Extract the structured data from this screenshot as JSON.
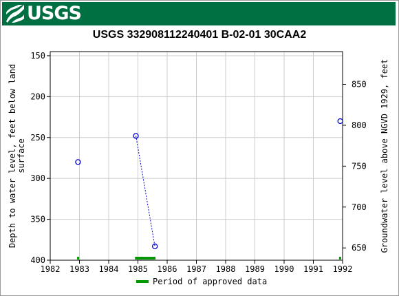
{
  "header": {
    "logo_text": "USGS",
    "logo_icon": "usgs-wave-icon",
    "banner_color": "#006f41"
  },
  "chart_data": {
    "type": "scatter",
    "title": "USGS 332908112240401 B-02-01 30CAA2",
    "xlabel": "",
    "ylabel_left": "Depth to water level, feet below land surface",
    "ylabel_right": "Groundwater level above NGVD 1929, feet",
    "xlim": [
      1982,
      1992
    ],
    "ylim_left": [
      400,
      145
    ],
    "ylim_right": [
      635,
      890
    ],
    "y_left_inverted": true,
    "x_ticks": [
      "1982",
      "1983",
      "1984",
      "1985",
      "1986",
      "1987",
      "1988",
      "1989",
      "1990",
      "1991",
      "1992"
    ],
    "y_left_ticks": [
      "150",
      "200",
      "250",
      "300",
      "350",
      "400"
    ],
    "y_right_ticks": [
      "650",
      "700",
      "750",
      "800",
      "850"
    ],
    "grid": true,
    "series": [
      {
        "marker": "open-circle",
        "color": "#0000cc",
        "points": [
          {
            "x": 1982.95,
            "y": 280
          },
          {
            "x": 1984.93,
            "y": 248
          },
          {
            "x": 1985.58,
            "y": 383
          },
          {
            "x": 1991.92,
            "y": 230
          }
        ],
        "connected_segments": [
          [
            1,
            2
          ]
        ]
      }
    ],
    "approved_periods": [
      [
        1982.92,
        1982.98
      ],
      [
        1984.9,
        1985.6
      ],
      [
        1991.88,
        1991.95
      ]
    ],
    "approved_color": "#009900",
    "legend": {
      "position": "bottom",
      "label": "Period of approved data"
    }
  }
}
